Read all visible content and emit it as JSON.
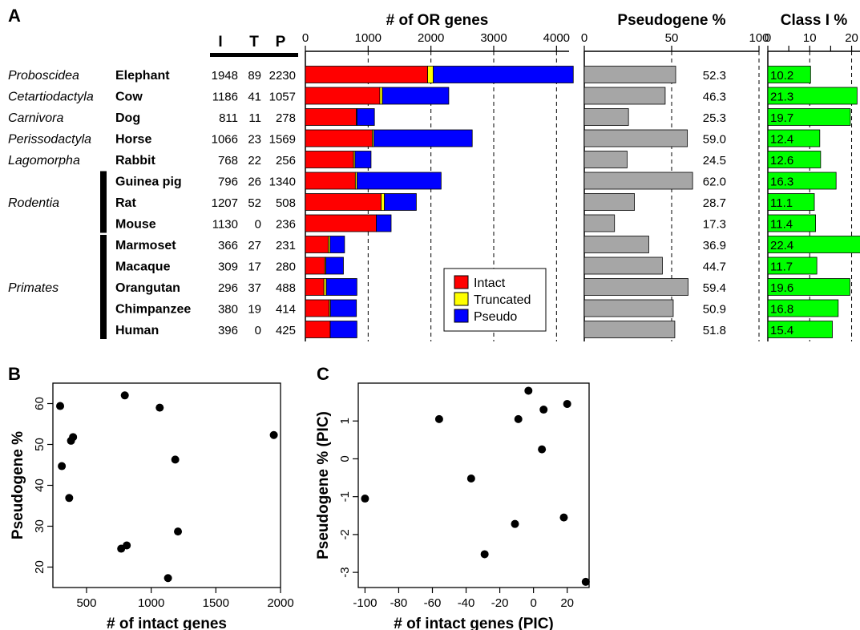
{
  "panel_labels": {
    "a": "A",
    "b": "B",
    "c": "C"
  },
  "colors": {
    "intact": "#ff0000",
    "truncated": "#ffff00",
    "pseudo": "#0000ff",
    "pseudogene_bar": "#a6a6a6",
    "class1_bar": "#00ff00"
  },
  "table_headers": [
    "I",
    "T",
    "P"
  ],
  "clades": [
    {
      "name": "Proboscidea",
      "species": [
        "Elephant"
      ]
    },
    {
      "name": "Cetartiodactyla",
      "species": [
        "Cow"
      ]
    },
    {
      "name": "Carnivora",
      "species": [
        "Dog"
      ]
    },
    {
      "name": "Perissodactyla",
      "species": [
        "Horse"
      ]
    },
    {
      "name": "Lagomorpha",
      "species": [
        "Rabbit"
      ]
    },
    {
      "name": "Rodentia",
      "species": [
        "Guinea pig",
        "Rat",
        "Mouse"
      ]
    },
    {
      "name": "Primates",
      "species": [
        "Marmoset",
        "Macaque",
        "Orangutan",
        "Chimpanzee",
        "Human"
      ]
    }
  ],
  "chart_data": [
    {
      "id": "or_genes",
      "type": "bar",
      "orientation": "horizontal",
      "stacked": true,
      "title": "# of OR genes",
      "categories": [
        "Elephant",
        "Cow",
        "Dog",
        "Horse",
        "Rabbit",
        "Guinea pig",
        "Rat",
        "Mouse",
        "Marmoset",
        "Macaque",
        "Orangutan",
        "Chimpanzee",
        "Human"
      ],
      "series": [
        {
          "name": "Intact",
          "values": [
            1948,
            1186,
            811,
            1066,
            768,
            796,
            1207,
            1130,
            366,
            309,
            296,
            380,
            396
          ]
        },
        {
          "name": "Truncated",
          "values": [
            89,
            41,
            11,
            23,
            22,
            26,
            52,
            0,
            27,
            17,
            37,
            19,
            0
          ]
        },
        {
          "name": "Pseudo",
          "values": [
            2230,
            1057,
            278,
            1569,
            256,
            1340,
            508,
            236,
            231,
            280,
            488,
            414,
            425
          ]
        }
      ],
      "xlim": [
        0,
        4200
      ],
      "ticks": [
        0,
        1000,
        2000,
        3000,
        4000
      ],
      "grid": "dashed-vertical",
      "legend": "bottom-right"
    },
    {
      "id": "pseudogene_pct",
      "type": "bar",
      "orientation": "horizontal",
      "title": "Pseudogene %",
      "categories": [
        "Elephant",
        "Cow",
        "Dog",
        "Horse",
        "Rabbit",
        "Guinea pig",
        "Rat",
        "Mouse",
        "Marmoset",
        "Macaque",
        "Orangutan",
        "Chimpanzee",
        "Human"
      ],
      "values": [
        52.3,
        46.3,
        25.3,
        59.0,
        24.5,
        62.0,
        28.7,
        17.3,
        36.9,
        44.7,
        59.4,
        50.9,
        51.8
      ],
      "labels": [
        "52.3",
        "46.3",
        "25.3",
        "59.0",
        "24.5",
        "62.0",
        "28.7",
        "17.3",
        "36.9",
        "44.7",
        "59.4",
        "50.9",
        "51.8"
      ],
      "xlim": [
        0,
        100
      ],
      "ticks": [
        0,
        50,
        100
      ],
      "grid": "dashed-vertical"
    },
    {
      "id": "class1_pct",
      "type": "bar",
      "orientation": "horizontal",
      "title": "Class I %",
      "categories": [
        "Elephant",
        "Cow",
        "Dog",
        "Horse",
        "Rabbit",
        "Guinea pig",
        "Rat",
        "Mouse",
        "Marmoset",
        "Macaque",
        "Orangutan",
        "Chimpanzee",
        "Human"
      ],
      "values": [
        10.2,
        21.3,
        19.7,
        12.4,
        12.6,
        16.3,
        11.1,
        11.4,
        22.4,
        11.7,
        19.6,
        16.8,
        15.4
      ],
      "labels": [
        "10.2",
        "21.3",
        "19.7",
        "12.4",
        "12.6",
        "16.3",
        "11.1",
        "11.4",
        "22.4",
        "11.7",
        "19.6",
        "16.8",
        "15.4"
      ],
      "xlim": [
        0,
        22
      ],
      "ticks": [
        0,
        10,
        20
      ],
      "grid": "dashed-vertical"
    },
    {
      "id": "scatter_b",
      "type": "scatter",
      "xlabel": "# of intact genes",
      "ylabel": "Pseudogene %",
      "x": [
        1948,
        1186,
        811,
        1066,
        768,
        796,
        1207,
        1130,
        366,
        309,
        296,
        380,
        396
      ],
      "y": [
        52.3,
        46.3,
        25.3,
        59.0,
        24.5,
        62.0,
        28.7,
        17.3,
        36.9,
        44.7,
        59.4,
        50.9,
        51.8
      ],
      "xlim": [
        240,
        2000
      ],
      "ylim": [
        15,
        65
      ],
      "xticks": [
        500,
        1000,
        1500,
        2000
      ],
      "yticks": [
        20,
        30,
        40,
        50,
        60
      ],
      "grid": false
    },
    {
      "id": "scatter_c",
      "type": "scatter",
      "xlabel": "# of intact genes (PIC)",
      "ylabel": "Pseudogene % (PIC)",
      "x": [
        -100,
        -56,
        -37,
        -29,
        -11,
        -9,
        -3,
        5,
        6,
        18,
        20,
        31
      ],
      "y": [
        -1.05,
        1.05,
        -0.52,
        -2.52,
        -1.72,
        1.05,
        1.8,
        0.25,
        1.3,
        -1.55,
        1.45,
        -3.25
      ],
      "xlim": [
        -104,
        33
      ],
      "ylim": [
        -3.4,
        2.0
      ],
      "xticks": [
        -100,
        -80,
        -60,
        -40,
        -20,
        0,
        20
      ],
      "yticks": [
        -3,
        -2,
        -1,
        0,
        1
      ],
      "grid": false
    }
  ]
}
